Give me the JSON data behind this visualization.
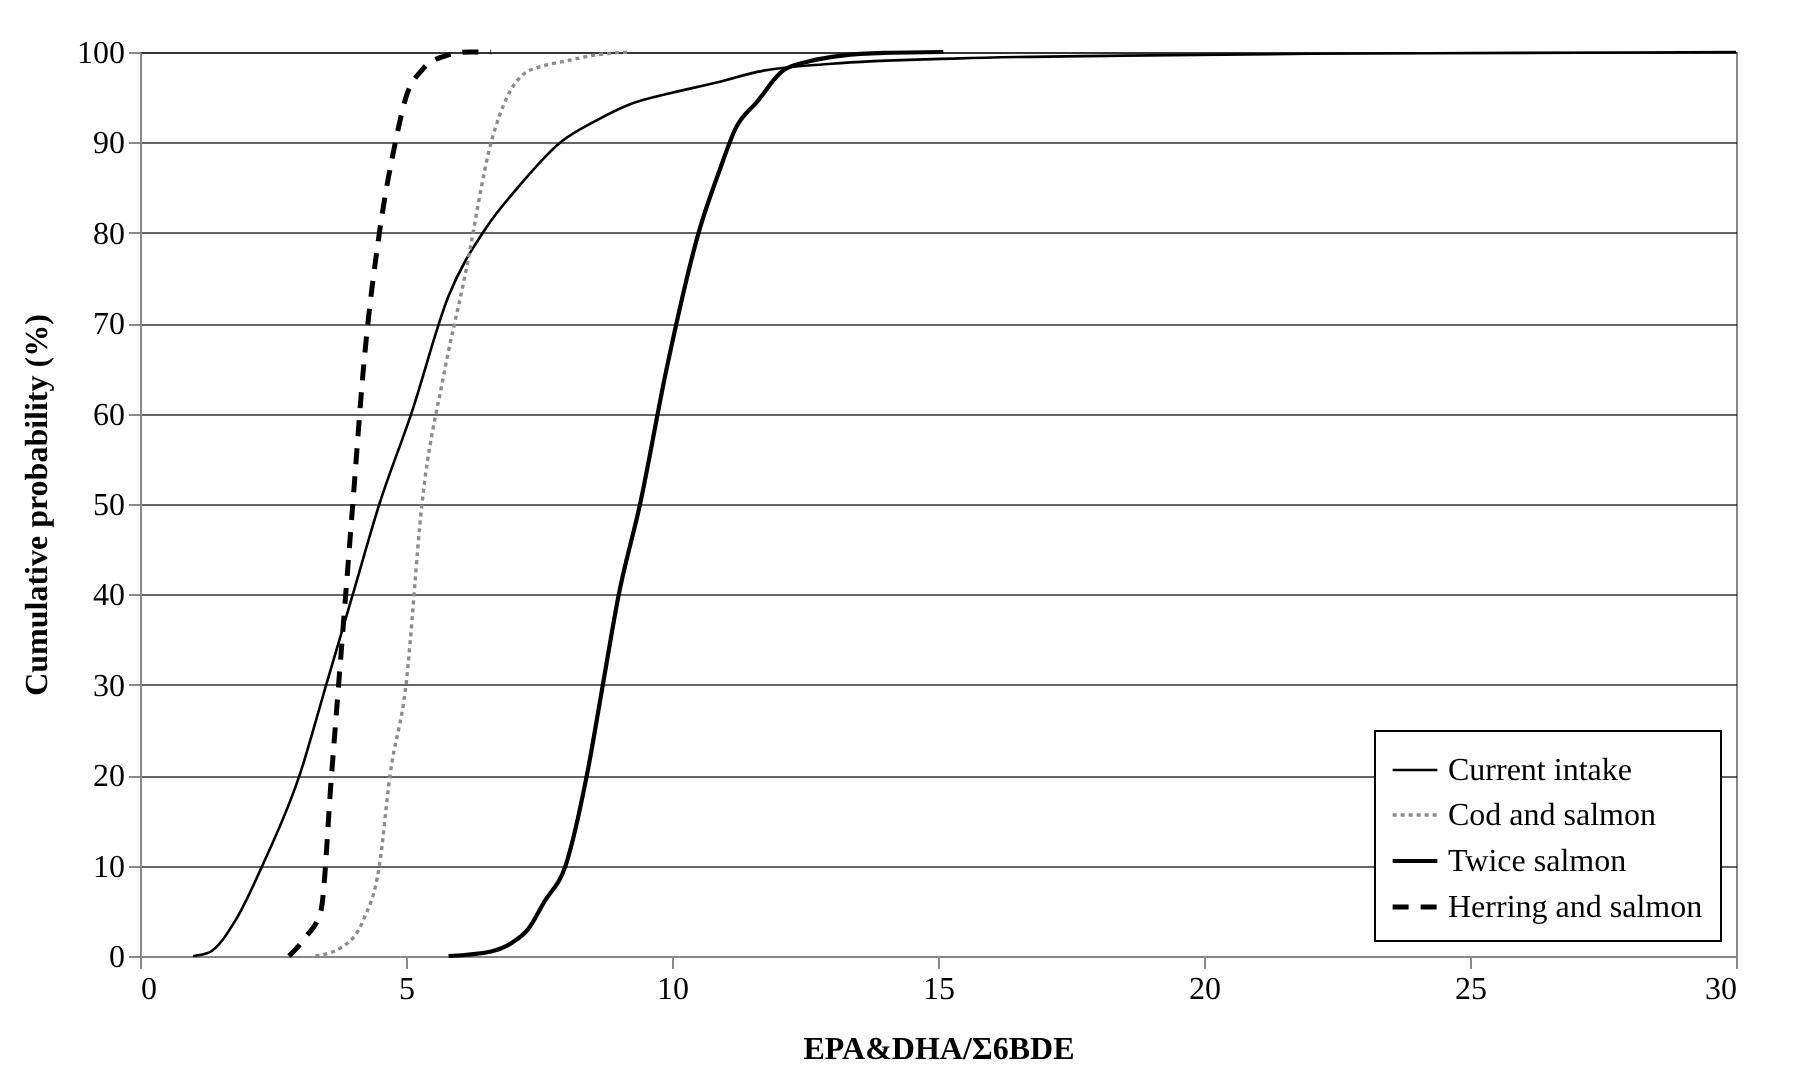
{
  "chart_data": {
    "type": "line",
    "xlabel": "EPA&DHA/Σ6BDE",
    "ylabel": "Cumulative probability (%)",
    "xlim": [
      0,
      30
    ],
    "xticks": [
      0,
      5,
      10,
      15,
      20,
      25,
      30
    ],
    "ylim": [
      0,
      100
    ],
    "yticks": [
      0,
      10,
      20,
      30,
      40,
      50,
      60,
      70,
      80,
      90,
      100
    ],
    "grid": "y",
    "legend": "bottom right",
    "marker": "none",
    "series": [
      {
        "name": "Current intake",
        "color": "#000000",
        "line_style": "solid",
        "x": [
          1.0,
          1.3,
          1.8,
          2.3,
          3.0,
          3.5,
          4.0,
          4.5,
          5.1,
          5.8,
          6.5,
          7.1,
          7.9,
          8.6,
          9.2,
          10.0,
          10.9,
          11.6,
          13,
          15.4,
          18.5,
          22,
          26,
          30
        ],
        "values": [
          0,
          0.4,
          4,
          10,
          20,
          30,
          40,
          50,
          60,
          73,
          80.5,
          85,
          90,
          92.5,
          94.2,
          95.5,
          96.7,
          97.8,
          98.7,
          99.3,
          99.6,
          99.8,
          99.9,
          100
        ]
      },
      {
        "name": "Cod and salmon",
        "color": "#8c8c8c",
        "line_style": "dotted",
        "x": [
          3.3,
          3.8,
          4.2,
          4.5,
          4.7,
          5.0,
          5.3,
          5.7,
          6.1,
          6.6,
          6.9,
          7.2,
          7.6,
          8.0,
          8.6,
          9.2
        ],
        "values": [
          0,
          1,
          4,
          10,
          20,
          30,
          50,
          64,
          75,
          90,
          95,
          97.5,
          98.5,
          99,
          99.7,
          100
        ]
      },
      {
        "name": "Twice salmon",
        "color": "#000000",
        "line_style": "solid",
        "x": [
          5.8,
          6.6,
          7.0,
          7.3,
          7.6,
          8.0,
          8.4,
          8.7,
          9.0,
          9.4,
          9.9,
          10.5,
          10.9,
          11.2,
          11.6,
          12.1,
          12.6,
          13.2,
          14,
          15.1
        ],
        "values": [
          0,
          0.5,
          1.5,
          3,
          6,
          10,
          20,
          30,
          40,
          50,
          65,
          80,
          87,
          91.6,
          94.5,
          98,
          99,
          99.6,
          99.9,
          100
        ]
      },
      {
        "name": "Herring and salmon",
        "color": "#000000",
        "line_style": "dashed",
        "x": [
          2.8,
          3.1,
          3.4,
          3.6,
          3.8,
          4.0,
          4.2,
          4.5,
          4.8,
          5.0,
          5.3,
          5.7,
          6.2,
          6.6
        ],
        "values": [
          0,
          2,
          5,
          20,
          35,
          50,
          65,
          80,
          90,
          95,
          98,
          99.5,
          100,
          100
        ]
      }
    ]
  }
}
